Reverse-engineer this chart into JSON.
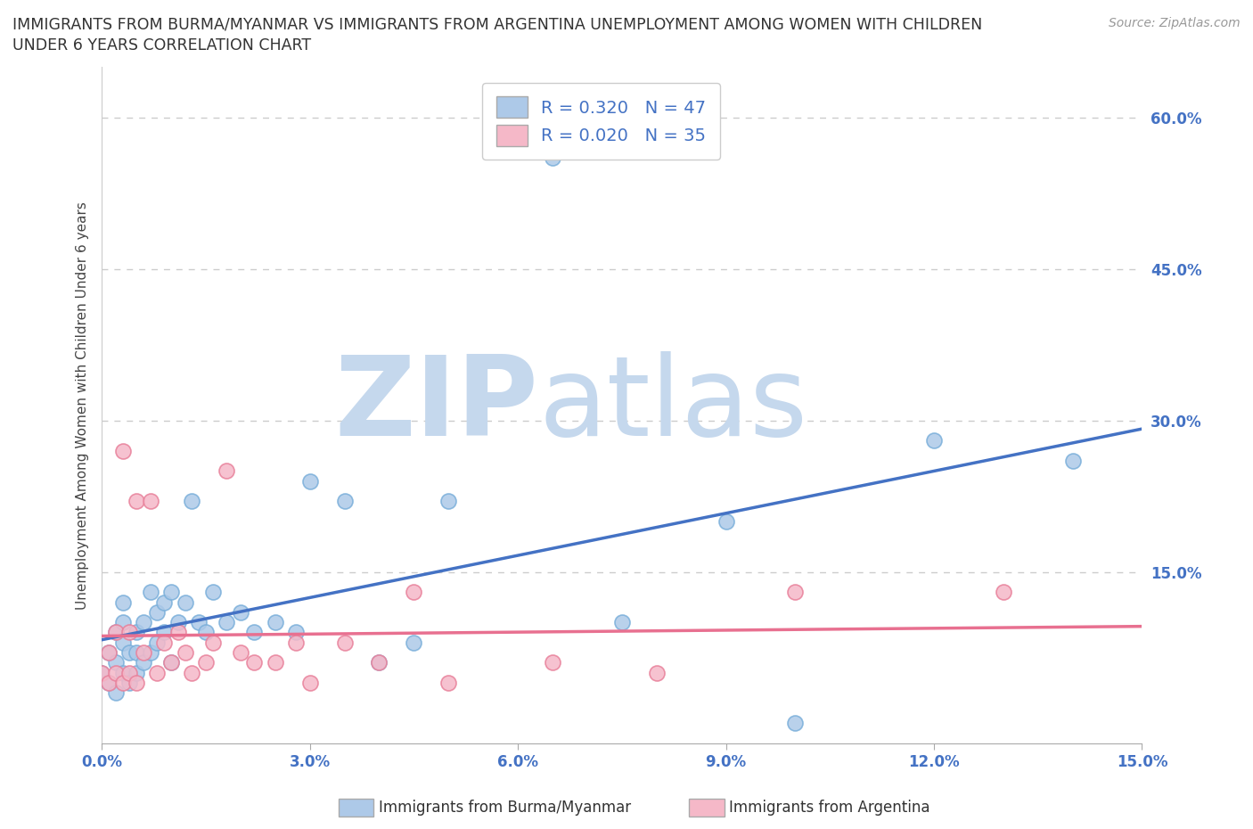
{
  "title_line1": "IMMIGRANTS FROM BURMA/MYANMAR VS IMMIGRANTS FROM ARGENTINA UNEMPLOYMENT AMONG WOMEN WITH CHILDREN",
  "title_line2": "UNDER 6 YEARS CORRELATION CHART",
  "source": "Source: ZipAtlas.com",
  "ylabel": "Unemployment Among Women with Children Under 6 years",
  "xlim": [
    0.0,
    0.15
  ],
  "ylim": [
    -0.02,
    0.65
  ],
  "xticks": [
    0.0,
    0.03,
    0.06,
    0.09,
    0.12,
    0.15
  ],
  "xticklabels": [
    "0.0%",
    "3.0%",
    "6.0%",
    "9.0%",
    "12.0%",
    "15.0%"
  ],
  "yticks": [
    0.15,
    0.3,
    0.45,
    0.6
  ],
  "yticklabels": [
    "15.0%",
    "30.0%",
    "45.0%",
    "60.0%"
  ],
  "series1_color": "#adc9e8",
  "series1_edge": "#7aafda",
  "series2_color": "#f5b8c8",
  "series2_edge": "#e8809a",
  "trendline1_color": "#4472c4",
  "trendline2_color": "#e87090",
  "legend1_label": "Immigrants from Burma/Myanmar",
  "legend2_label": "Immigrants from Argentina",
  "R1": 0.32,
  "N1": 47,
  "R2": 0.02,
  "N2": 35,
  "watermark_zip": "ZIP",
  "watermark_atlas": "atlas",
  "watermark_color_zip": "#c5d8ed",
  "watermark_color_atlas": "#c5d8ed",
  "background_color": "#ffffff",
  "grid_color": "#cccccc",
  "series1_x": [
    0.0,
    0.001,
    0.001,
    0.002,
    0.002,
    0.002,
    0.003,
    0.003,
    0.003,
    0.003,
    0.004,
    0.004,
    0.005,
    0.005,
    0.005,
    0.006,
    0.006,
    0.007,
    0.007,
    0.008,
    0.008,
    0.009,
    0.009,
    0.01,
    0.01,
    0.011,
    0.012,
    0.013,
    0.014,
    0.015,
    0.016,
    0.018,
    0.02,
    0.022,
    0.025,
    0.028,
    0.03,
    0.035,
    0.04,
    0.045,
    0.05,
    0.065,
    0.075,
    0.09,
    0.1,
    0.12,
    0.14
  ],
  "series1_y": [
    0.05,
    0.04,
    0.07,
    0.03,
    0.06,
    0.09,
    0.05,
    0.08,
    0.1,
    0.12,
    0.04,
    0.07,
    0.05,
    0.07,
    0.09,
    0.06,
    0.1,
    0.07,
    0.13,
    0.08,
    0.11,
    0.09,
    0.12,
    0.06,
    0.13,
    0.1,
    0.12,
    0.22,
    0.1,
    0.09,
    0.13,
    0.1,
    0.11,
    0.09,
    0.1,
    0.09,
    0.24,
    0.22,
    0.06,
    0.08,
    0.22,
    0.56,
    0.1,
    0.2,
    0.0,
    0.28,
    0.26
  ],
  "series2_x": [
    0.0,
    0.001,
    0.001,
    0.002,
    0.002,
    0.003,
    0.003,
    0.004,
    0.004,
    0.005,
    0.005,
    0.006,
    0.007,
    0.008,
    0.009,
    0.01,
    0.011,
    0.012,
    0.013,
    0.015,
    0.016,
    0.018,
    0.02,
    0.022,
    0.025,
    0.028,
    0.03,
    0.035,
    0.04,
    0.045,
    0.05,
    0.065,
    0.08,
    0.1,
    0.13
  ],
  "series2_y": [
    0.05,
    0.04,
    0.07,
    0.05,
    0.09,
    0.04,
    0.27,
    0.05,
    0.09,
    0.04,
    0.22,
    0.07,
    0.22,
    0.05,
    0.08,
    0.06,
    0.09,
    0.07,
    0.05,
    0.06,
    0.08,
    0.25,
    0.07,
    0.06,
    0.06,
    0.08,
    0.04,
    0.08,
    0.06,
    0.13,
    0.04,
    0.06,
    0.05,
    0.13,
    0.13
  ]
}
